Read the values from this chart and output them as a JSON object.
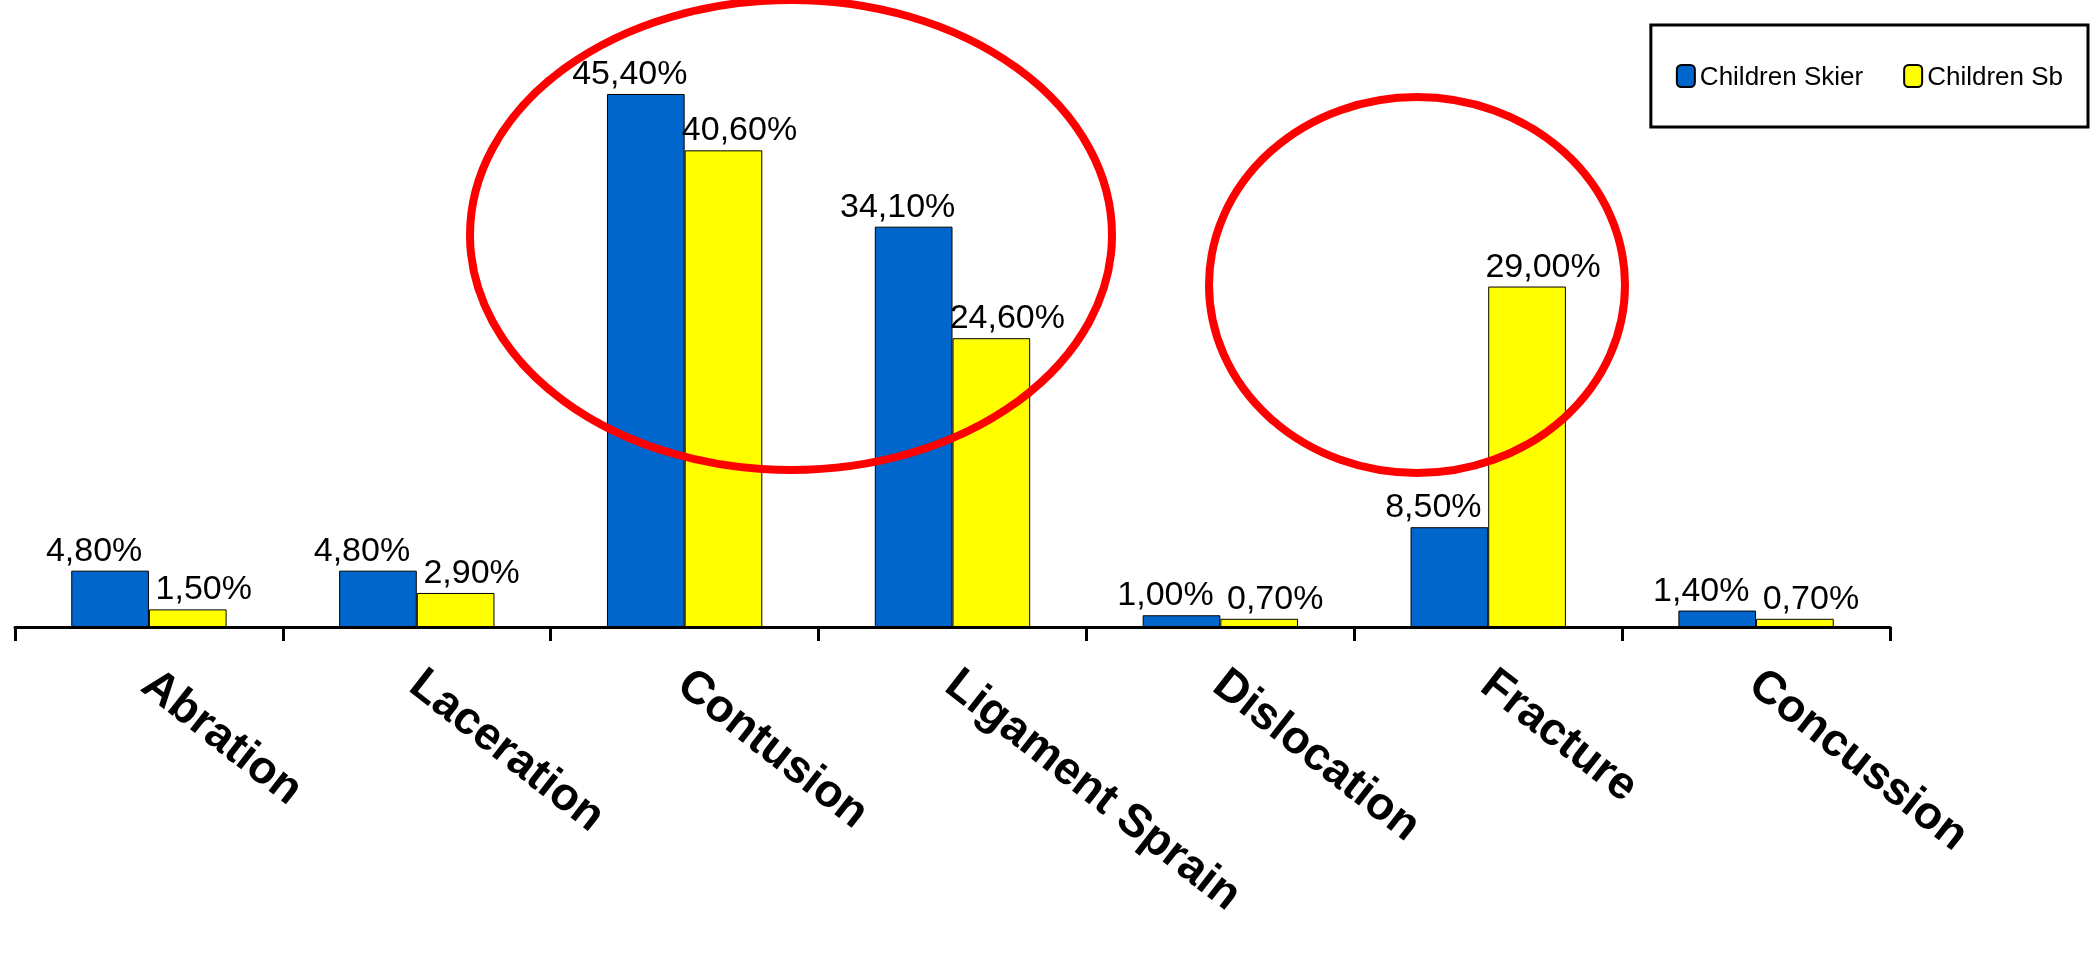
{
  "chart_data": {
    "type": "bar",
    "categories": [
      "Abration",
      "Laceration",
      "Contusion",
      "Ligament Sprain",
      "Dislocation",
      "Fracture",
      "Concussion"
    ],
    "series": [
      {
        "name": "Children Skier",
        "color": "#0066cc",
        "values": [
          4.8,
          4.8,
          45.4,
          34.1,
          1.0,
          8.5,
          1.4
        ],
        "value_labels": [
          "4,80%",
          "4,80%",
          "45,40%",
          "34,10%",
          "1,00%",
          "8,50%",
          "1,40%"
        ]
      },
      {
        "name": "Children Sb",
        "color": "#ffff00",
        "values": [
          1.5,
          2.9,
          40.6,
          24.6,
          0.7,
          29.0,
          0.7
        ],
        "value_labels": [
          "1,50%",
          "2,90%",
          "40,60%",
          "24,60%",
          "0,70%",
          "29,00%",
          "0,70%"
        ]
      }
    ],
    "legend": "top right"
  }
}
